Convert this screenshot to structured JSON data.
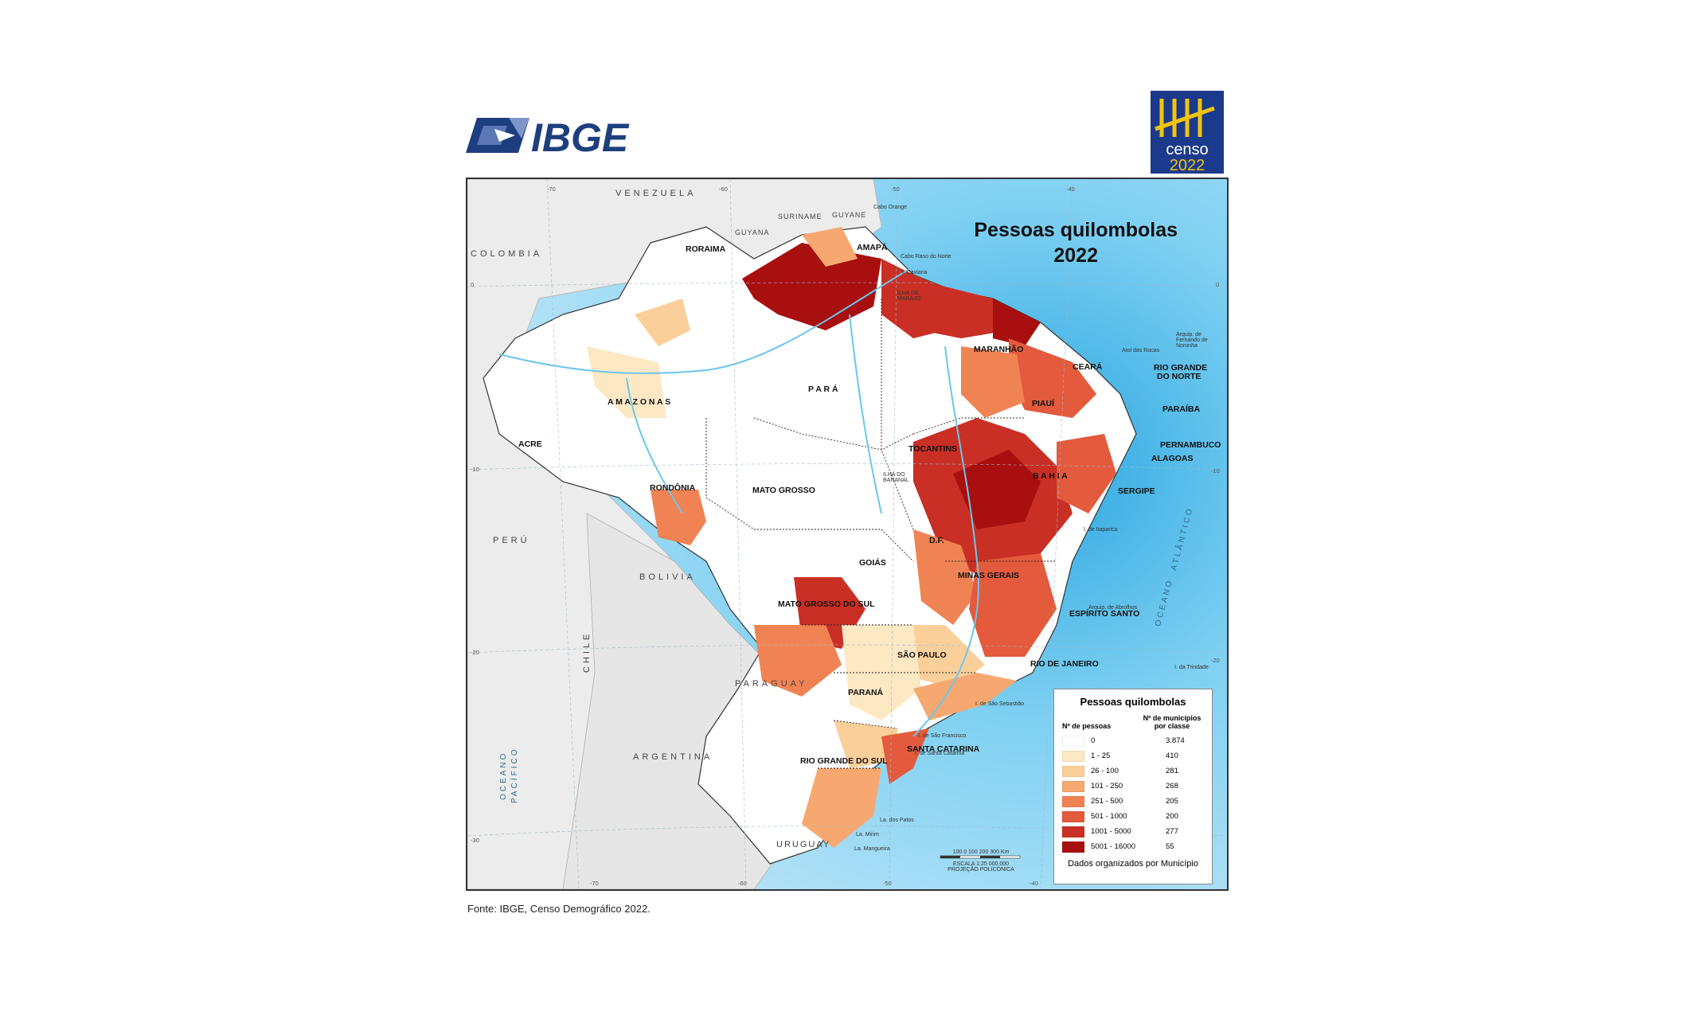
{
  "header": {
    "ibge_logo_text": "IBGE",
    "censo_logo": {
      "word": "censo",
      "year": "2022"
    }
  },
  "map": {
    "title_line1": "Pessoas quilombolas",
    "title_line2": "2022",
    "states": [
      "RORAIMA",
      "AMAPÁ",
      "MARANHÃO",
      "CEARÁ",
      "RIO GRANDE",
      "DO NORTE",
      "PARAÍBA",
      "PIAUÍ",
      "PERNAMBUCO",
      "ALAGOAS",
      "SERGIPE",
      "A M A Z O N A S",
      "P A R Á",
      "ACRE",
      "TOCANTINS",
      "RONDÔNIA",
      "MATO   GROSSO",
      "B A H I A",
      "D.F.",
      "GOIÁS",
      "MINAS GERAIS",
      "MATO GROSSO DO SUL",
      "ESPÍRITO SANTO",
      "SÃO PAULO",
      "RIO DE JANEIRO",
      "PARANÁ",
      "SANTA CATARINA",
      "RIO GRANDE DO SUL"
    ],
    "countries": [
      "VENEZUELA",
      "SURINAME",
      "GUYANE",
      "GUYANA",
      "COLOMBIA",
      "PERÚ",
      "BOLIVIA",
      "PARAGUAY",
      "ARGENTINA",
      "URUGUAY",
      "CHILE"
    ],
    "seas": [
      "OCEANO",
      "ATLÂNTICO",
      "OCEANO",
      "PACÍFICO"
    ],
    "places": [
      "Cabo Orange",
      "Cabo Raso do Norte",
      "I. Caviana",
      "ILHA DE MARAJÓ",
      "Arquip. de Fernando de Noronha",
      "Atol das Rocas",
      "ILHA DO BANANAL",
      "I. de Itaparica",
      "Arquip. de Abrolhos",
      "I. da Trindade",
      "I. de São Sebastião",
      "I. de São Francisco",
      "I. de Santa Catarina",
      "La. dos Patos",
      "La. Mirim",
      "La. Mangueira"
    ],
    "grid_labels": [
      "-70",
      "-60",
      "-50",
      "-40",
      "0",
      "0",
      "-10",
      "-10",
      "-20",
      "-20",
      "-30",
      "-70",
      "-60",
      "-50",
      "-40"
    ],
    "scale": {
      "ticks": "100    0     100   200   300  Km",
      "ratio": "ESCALA 1:25 000 000",
      "projection": "PROJEÇÃO POLICÔNICA"
    }
  },
  "legend": {
    "title": "Pessoas quilombolas",
    "col_people": "Nº de pessoas",
    "col_count": "Nº de municípios por classe",
    "classes": [
      {
        "range": "0",
        "count": "3.874",
        "color": "#ffffff"
      },
      {
        "range": "1 - 25",
        "count": "410",
        "color": "#fde8c4"
      },
      {
        "range": "26 - 100",
        "count": "281",
        "color": "#fbcf9a"
      },
      {
        "range": "101 - 250",
        "count": "268",
        "color": "#f6a870"
      },
      {
        "range": "251 - 500",
        "count": "205",
        "color": "#f08354"
      },
      {
        "range": "501 - 1000",
        "count": "200",
        "color": "#e35a3c"
      },
      {
        "range": "1001 - 5000",
        "count": "277",
        "color": "#c92f24"
      },
      {
        "range": "5001 - 16000",
        "count": "55",
        "color": "#a80f0f"
      }
    ],
    "note": "Dados organizados por Município"
  },
  "footer": {
    "source": "Fonte: IBGE, Censo Demográfico 2022."
  }
}
